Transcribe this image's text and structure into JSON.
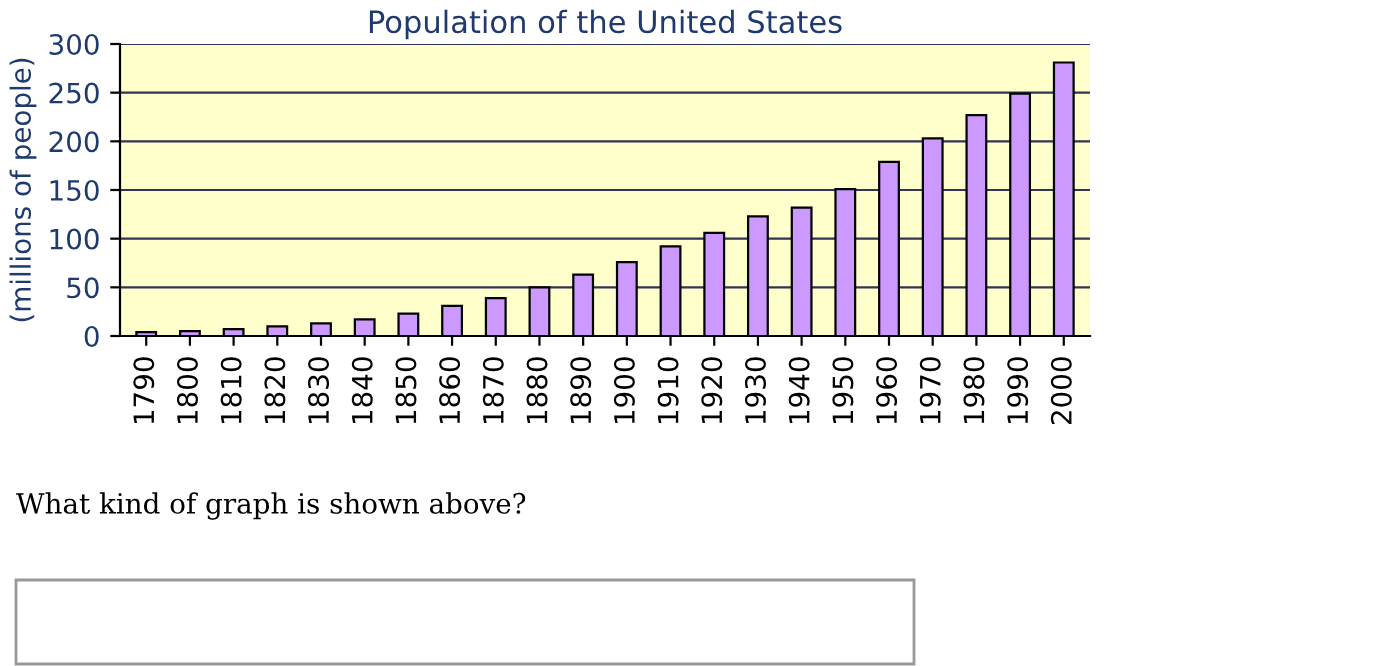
{
  "chart_data": {
    "type": "bar",
    "title": "Population of the United States",
    "ylabel": "(millions of people)",
    "categories": [
      "1790",
      "1800",
      "1810",
      "1820",
      "1830",
      "1840",
      "1850",
      "1860",
      "1870",
      "1880",
      "1890",
      "1900",
      "1910",
      "1920",
      "1930",
      "1940",
      "1950",
      "1960",
      "1970",
      "1980",
      "1990",
      "2000"
    ],
    "values": [
      4,
      5,
      7,
      10,
      13,
      17,
      23,
      31,
      39,
      50,
      63,
      76,
      92,
      106,
      123,
      132,
      151,
      179,
      203,
      227,
      249,
      281
    ],
    "color": "#cc99ff",
    "ylim": [
      0,
      300
    ],
    "yticks": [
      0,
      50,
      100,
      150,
      200,
      250,
      300
    ],
    "grid": "y",
    "annotations": [
      "What kind of graph is shown above?"
    ]
  }
}
